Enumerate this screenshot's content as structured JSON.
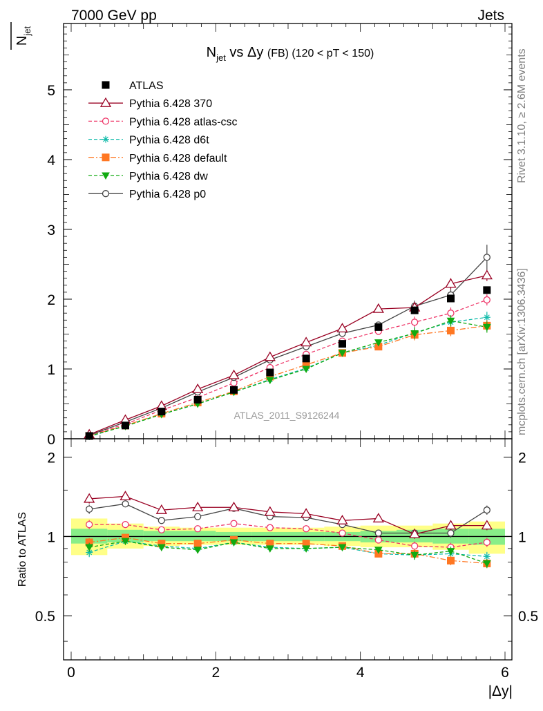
{
  "header": {
    "left": "7000 GeV pp",
    "right": "Jets"
  },
  "side_labels": {
    "rivet": "Rivet 3.1.10, ≥ 2.6M events",
    "mcplots": "mcplots.cern.ch [arXiv:1306.3436]"
  },
  "watermark": "ATLAS_2011_S9126244",
  "title": {
    "n": "N",
    "n_sub": "jet",
    "vs": " vs Δy ",
    "fb": "(FB)",
    "cut": " (120 < pT < 150)"
  },
  "axes": {
    "ylabel_top_n": "N",
    "ylabel_top_sub": "jet",
    "ylabel_bottom": "Ratio to ATLAS",
    "xlabel": "|Δy|"
  },
  "colors": {
    "data": "#000000",
    "p370": "#990022",
    "atlascsc": "#ee3366",
    "d6t": "#11bbaa",
    "default": "#ff7722",
    "dw": "#11aa11",
    "p0": "#444444",
    "band_1sigma": "#88ee88",
    "band_2sigma": "#ffff88"
  },
  "chart_data": [
    {
      "type": "line",
      "panel": "main",
      "xlim": [
        0,
        6
      ],
      "ylim": [
        0,
        5.95
      ],
      "x_ticks": [
        "0",
        "2",
        "4",
        "6"
      ],
      "y_ticks": [
        "0",
        "1",
        "2",
        "3",
        "4",
        "5"
      ],
      "legend_position": "top-left",
      "x": [
        0.25,
        0.75,
        1.25,
        1.75,
        2.25,
        2.75,
        3.25,
        3.75,
        4.25,
        4.75,
        5.25,
        5.75
      ],
      "series": [
        {
          "key": "atlas",
          "name": "ATLAS",
          "color": "#000000",
          "marker": "square-filled",
          "dash": "none",
          "values": [
            0.04,
            0.19,
            0.39,
            0.56,
            0.7,
            0.95,
            1.15,
            1.36,
            1.6,
            1.84,
            2.01,
            2.13
          ]
        },
        {
          "key": "p370",
          "name": "Pythia 6.428 370",
          "color": "#990022",
          "marker": "triangle-open",
          "dash": "solid",
          "values": [
            0.06,
            0.27,
            0.47,
            0.71,
            0.91,
            1.17,
            1.38,
            1.58,
            1.86,
            1.88,
            2.22,
            2.34
          ]
        },
        {
          "key": "atlascsc",
          "name": "Pythia 6.428 atlas-csc",
          "color": "#ee3366",
          "marker": "circle-open",
          "dash": "dashed",
          "values": [
            0.05,
            0.21,
            0.41,
            0.59,
            0.8,
            1.02,
            1.21,
            1.4,
            1.54,
            1.67,
            1.8,
            1.99
          ]
        },
        {
          "key": "d6t",
          "name": "Pythia 6.428 d6t",
          "color": "#11bbaa",
          "marker": "star",
          "dash": "dashed",
          "values": [
            0.03,
            0.19,
            0.35,
            0.5,
            0.67,
            0.85,
            1.01,
            1.23,
            1.34,
            1.52,
            1.67,
            1.74
          ]
        },
        {
          "key": "default",
          "name": "Pythia 6.428 default",
          "color": "#ff7722",
          "marker": "square-filled",
          "dash": "dashdot",
          "values": [
            0.04,
            0.19,
            0.36,
            0.52,
            0.68,
            0.89,
            1.06,
            1.23,
            1.32,
            1.49,
            1.55,
            1.62
          ]
        },
        {
          "key": "dw",
          "name": "Pythia 6.428 dw",
          "color": "#11aa11",
          "marker": "triangle-down-filled",
          "dash": "dashed",
          "values": [
            0.04,
            0.18,
            0.35,
            0.5,
            0.67,
            0.84,
            1.0,
            1.23,
            1.38,
            1.51,
            1.69,
            1.6
          ]
        },
        {
          "key": "p0",
          "name": "Pythia 6.428 p0",
          "color": "#444444",
          "marker": "circle-open",
          "dash": "solid",
          "values": [
            0.05,
            0.24,
            0.44,
            0.67,
            0.88,
            1.13,
            1.32,
            1.51,
            1.63,
            1.9,
            2.06,
            2.6
          ]
        }
      ]
    },
    {
      "type": "line",
      "panel": "ratio",
      "ylabel": "Ratio to ATLAS",
      "xlabel": "|Δy|",
      "xlim": [
        0,
        6
      ],
      "ylim": [
        0.34,
        2.35
      ],
      "scale": "log",
      "x_ticks": [
        "0",
        "2",
        "4",
        "6"
      ],
      "y_ticks": [
        "0.5",
        "1",
        "2"
      ],
      "x": [
        0.25,
        0.75,
        1.25,
        1.75,
        2.25,
        2.75,
        3.25,
        3.75,
        4.25,
        4.75,
        5.25,
        5.75
      ],
      "bands": {
        "one_sigma": [
          [
            0.94,
            1.07
          ],
          [
            0.95,
            1.06
          ],
          [
            0.96,
            1.05
          ],
          [
            0.96,
            1.05
          ],
          [
            0.96,
            1.04
          ],
          [
            0.96,
            1.04
          ],
          [
            0.96,
            1.04
          ],
          [
            0.96,
            1.04
          ],
          [
            0.95,
            1.05
          ],
          [
            0.95,
            1.06
          ],
          [
            0.94,
            1.07
          ],
          [
            0.93,
            1.07
          ]
        ],
        "two_sigma": [
          [
            0.85,
            1.17
          ],
          [
            0.9,
            1.12
          ],
          [
            0.92,
            1.09
          ],
          [
            0.93,
            1.08
          ],
          [
            0.93,
            1.08
          ],
          [
            0.93,
            1.08
          ],
          [
            0.93,
            1.08
          ],
          [
            0.92,
            1.09
          ],
          [
            0.91,
            1.1
          ],
          [
            0.91,
            1.1
          ],
          [
            0.89,
            1.12
          ],
          [
            0.86,
            1.14
          ]
        ]
      },
      "series": [
        {
          "key": "p370",
          "name": "Pythia 6.428 370",
          "values": [
            1.39,
            1.42,
            1.26,
            1.29,
            1.29,
            1.24,
            1.22,
            1.15,
            1.17,
            1.02,
            1.1,
            1.1
          ]
        },
        {
          "key": "atlascsc",
          "name": "Pythia 6.428 atlas-csc",
          "values": [
            1.11,
            1.11,
            1.06,
            1.07,
            1.12,
            1.08,
            1.07,
            1.03,
            0.97,
            0.92,
            0.91,
            0.95
          ]
        },
        {
          "key": "d6t",
          "name": "Pythia 6.428 d6t",
          "values": [
            0.87,
            0.96,
            0.92,
            0.9,
            0.95,
            0.91,
            0.9,
            0.91,
            0.86,
            0.85,
            0.86,
            0.84
          ]
        },
        {
          "key": "default",
          "name": "Pythia 6.428 default",
          "values": [
            0.95,
            0.99,
            0.94,
            0.94,
            0.97,
            0.94,
            0.94,
            0.92,
            0.86,
            0.86,
            0.81,
            0.79
          ]
        },
        {
          "key": "dw",
          "name": "Pythia 6.428 dw",
          "values": [
            0.91,
            0.96,
            0.91,
            0.89,
            0.95,
            0.9,
            0.9,
            0.91,
            0.89,
            0.85,
            0.88,
            0.79
          ]
        },
        {
          "key": "p0",
          "name": "Pythia 6.428 p0",
          "values": [
            1.27,
            1.33,
            1.15,
            1.19,
            1.28,
            1.19,
            1.18,
            1.11,
            1.03,
            1.03,
            1.03,
            1.26
          ]
        }
      ]
    }
  ]
}
